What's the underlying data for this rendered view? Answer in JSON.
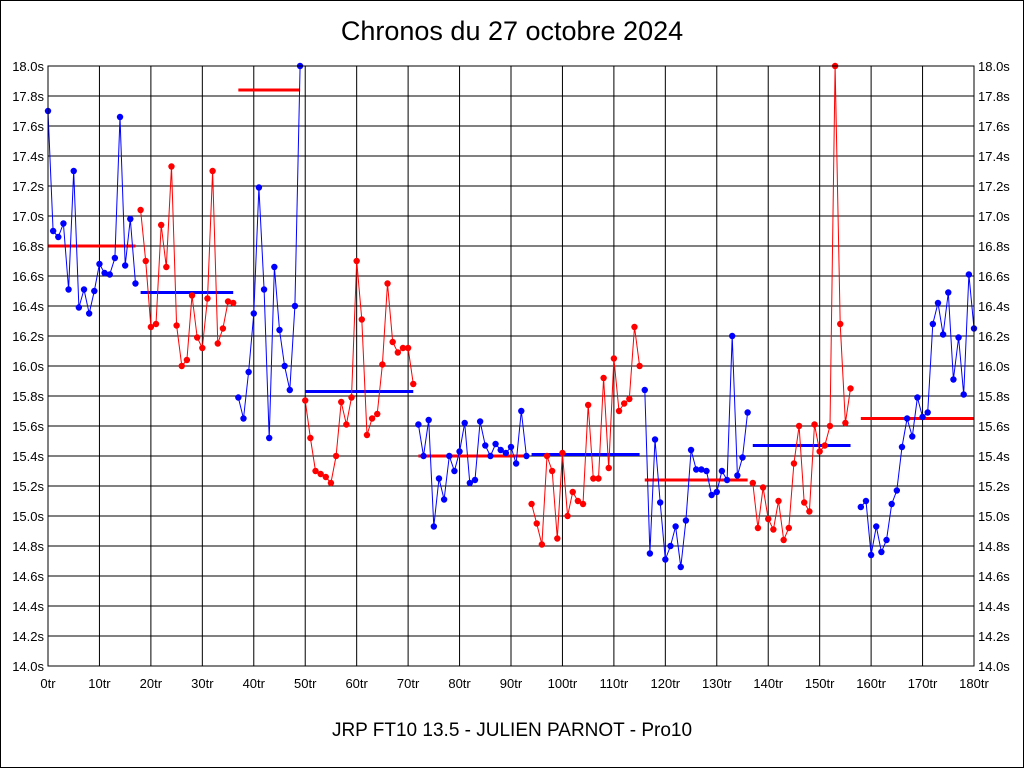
{
  "chart_data": {
    "type": "line",
    "title": "Chronos du 27 octobre 2024",
    "footer": "JRP FT10 13.5 - JULIEN PARNOT - Pro10",
    "xlabel": "",
    "ylabel": "",
    "x_unit": "tr",
    "y_unit": "s",
    "xlim": [
      0,
      180
    ],
    "ylim": [
      14.0,
      18.0
    ],
    "x_ticks": [
      0,
      10,
      20,
      30,
      40,
      50,
      60,
      70,
      80,
      90,
      100,
      110,
      120,
      130,
      140,
      150,
      160,
      170,
      180
    ],
    "y_ticks": [
      14.0,
      14.2,
      14.4,
      14.6,
      14.8,
      15.0,
      15.2,
      15.4,
      15.6,
      15.8,
      16.0,
      16.2,
      16.4,
      16.6,
      16.8,
      17.0,
      17.2,
      17.4,
      17.6,
      17.8,
      18.0
    ],
    "grid": true,
    "legend": "none",
    "colors": {
      "blue": "#0000ff",
      "red": "#ff0000",
      "grid": "#000000"
    },
    "stints": [
      {
        "color": "blue",
        "x": [
          0,
          1,
          2,
          3,
          4,
          5,
          6,
          7,
          8,
          9,
          10,
          11,
          12,
          13,
          14,
          15,
          16,
          17
        ],
        "y": [
          17.7,
          16.9,
          16.86,
          16.95,
          16.51,
          17.3,
          16.39,
          16.51,
          16.35,
          16.5,
          16.68,
          16.62,
          16.61,
          16.72,
          17.66,
          16.67,
          16.98,
          16.55
        ],
        "avg": 16.8
      },
      {
        "color": "red",
        "x": [
          18,
          19,
          20,
          21,
          22,
          23,
          24,
          25,
          26,
          27,
          28,
          29,
          30,
          31,
          32,
          33,
          34,
          35,
          36
        ],
        "y": [
          17.04,
          16.7,
          16.26,
          16.28,
          16.94,
          16.66,
          17.33,
          16.27,
          16.0,
          16.04,
          16.47,
          16.19,
          16.12,
          16.45,
          17.3,
          16.15,
          16.25,
          16.43,
          16.42
        ],
        "avg": 16.49
      },
      {
        "color": "blue",
        "x": [
          37,
          38,
          39,
          40,
          41,
          42,
          43,
          44,
          45,
          46,
          47,
          48,
          49
        ],
        "y": [
          15.79,
          15.65,
          15.96,
          16.35,
          17.19,
          16.51,
          15.52,
          16.66,
          16.24,
          16.0,
          15.84,
          16.4,
          18.0
        ],
        "avg": 17.84
      },
      {
        "color": "red",
        "x": [
          50,
          51,
          52,
          53,
          54,
          55,
          56,
          57,
          58,
          59,
          60,
          61,
          62,
          63,
          64,
          65,
          66,
          67,
          68,
          69,
          70,
          71
        ],
        "y": [
          15.77,
          15.52,
          15.3,
          15.28,
          15.26,
          15.22,
          15.4,
          15.76,
          15.61,
          15.79,
          16.7,
          16.31,
          15.54,
          15.65,
          15.68,
          16.01,
          16.55,
          16.16,
          16.09,
          16.12,
          16.12,
          15.88
        ],
        "avg": 15.83
      },
      {
        "color": "blue",
        "x": [
          72,
          73,
          74,
          75,
          76,
          77,
          78,
          79,
          80,
          81,
          82,
          83,
          84,
          85,
          86,
          87,
          88,
          89,
          90,
          91,
          92,
          93
        ],
        "y": [
          15.61,
          15.4,
          15.64,
          14.93,
          15.25,
          15.11,
          15.4,
          15.3,
          15.43,
          15.62,
          15.22,
          15.24,
          15.63,
          15.47,
          15.4,
          15.48,
          15.44,
          15.42,
          15.46,
          15.35,
          15.7,
          15.4
        ],
        "avg": 15.4
      },
      {
        "color": "red",
        "x": [
          94,
          95,
          96,
          97,
          98,
          99,
          100,
          101,
          102,
          103,
          104,
          105,
          106,
          107,
          108,
          109,
          110,
          111,
          112,
          113,
          114,
          115
        ],
        "y": [
          15.08,
          14.95,
          14.81,
          15.4,
          15.3,
          14.85,
          15.42,
          15.0,
          15.16,
          15.1,
          15.08,
          15.74,
          15.25,
          15.25,
          15.92,
          15.32,
          16.05,
          15.7,
          15.75,
          15.78,
          16.26,
          16.0
        ],
        "avg": 15.41
      },
      {
        "color": "blue",
        "x": [
          116,
          117,
          118,
          119,
          120,
          121,
          122,
          123,
          124,
          125,
          126,
          127,
          128,
          129,
          130,
          131,
          132,
          133,
          134,
          135,
          136
        ],
        "y": [
          15.84,
          14.75,
          15.51,
          15.09,
          14.71,
          14.8,
          14.93,
          14.66,
          14.97,
          15.44,
          15.31,
          15.31,
          15.3,
          15.14,
          15.16,
          15.3,
          15.24,
          16.2,
          15.27,
          15.39,
          15.69
        ],
        "avg": 15.24
      },
      {
        "color": "red",
        "x": [
          137,
          138,
          139,
          140,
          141,
          142,
          143,
          144,
          145,
          146,
          147,
          148,
          149,
          150,
          151,
          152,
          153,
          154,
          155,
          156
        ],
        "y": [
          15.22,
          14.92,
          15.19,
          14.98,
          14.91,
          15.1,
          14.84,
          14.92,
          15.35,
          15.6,
          15.09,
          15.03,
          15.61,
          15.43,
          15.47,
          15.6,
          18.0,
          16.28,
          15.62,
          15.85
        ],
        "avg": 15.47
      },
      {
        "color": "blue",
        "x": [
          158,
          159,
          160,
          161,
          162,
          163,
          164,
          165,
          166,
          167,
          168,
          169,
          170,
          171,
          172,
          173,
          174,
          175,
          176,
          177,
          178,
          179,
          180
        ],
        "y": [
          15.06,
          15.1,
          14.74,
          14.93,
          14.76,
          14.84,
          15.08,
          15.17,
          15.46,
          15.65,
          15.53,
          15.79,
          15.66,
          15.69,
          16.28,
          16.42,
          16.21,
          16.49,
          15.91,
          16.19,
          15.81,
          16.61,
          16.25
        ],
        "avg": 15.65
      }
    ],
    "averages": [
      {
        "color": "red",
        "x": [
          0,
          17
        ],
        "y": 16.8
      },
      {
        "color": "blue",
        "x": [
          18,
          36
        ],
        "y": 16.49
      },
      {
        "color": "red",
        "x": [
          37,
          49
        ],
        "y": 17.84
      },
      {
        "color": "blue",
        "x": [
          50,
          71
        ],
        "y": 15.83
      },
      {
        "color": "red",
        "x": [
          72,
          93
        ],
        "y": 15.4
      },
      {
        "color": "blue",
        "x": [
          94,
          115
        ],
        "y": 15.41
      },
      {
        "color": "red",
        "x": [
          116,
          136
        ],
        "y": 15.24
      },
      {
        "color": "blue",
        "x": [
          137,
          156
        ],
        "y": 15.47
      },
      {
        "color": "red",
        "x": [
          158,
          180
        ],
        "y": 15.65
      }
    ]
  }
}
